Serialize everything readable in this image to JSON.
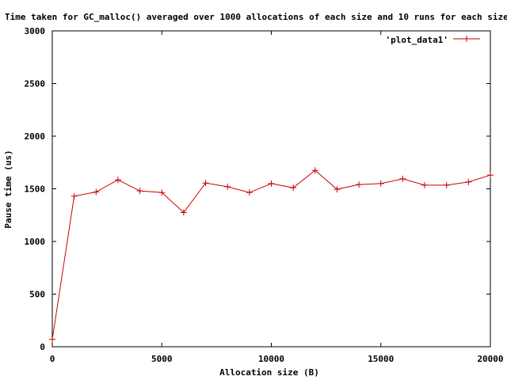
{
  "chart_data": {
    "type": "line",
    "title": "Time taken for GC_malloc() averaged over 1000 allocations of each size and 10 runs for each size",
    "xlabel": "Allocation size (B)",
    "ylabel": "Pause time (us)",
    "xlim": [
      0,
      20000
    ],
    "ylim": [
      0,
      3000
    ],
    "xticks": [
      0,
      5000,
      10000,
      15000,
      20000
    ],
    "yticks": [
      0,
      500,
      1000,
      1500,
      2000,
      2500,
      3000
    ],
    "grid": false,
    "legend_position": "top-right",
    "series": [
      {
        "name": "'plot_data1'",
        "color": "#cc0000",
        "marker": "plus",
        "x": [
          0,
          1000,
          2000,
          3000,
          4000,
          5000,
          6000,
          7000,
          8000,
          9000,
          10000,
          11000,
          12000,
          13000,
          14000,
          15000,
          16000,
          17000,
          18000,
          19000,
          20000
        ],
        "y": [
          70,
          1430,
          1470,
          1585,
          1480,
          1465,
          1275,
          1555,
          1520,
          1465,
          1550,
          1510,
          1675,
          1495,
          1540,
          1550,
          1595,
          1535,
          1535,
          1565,
          1630
        ]
      }
    ]
  }
}
